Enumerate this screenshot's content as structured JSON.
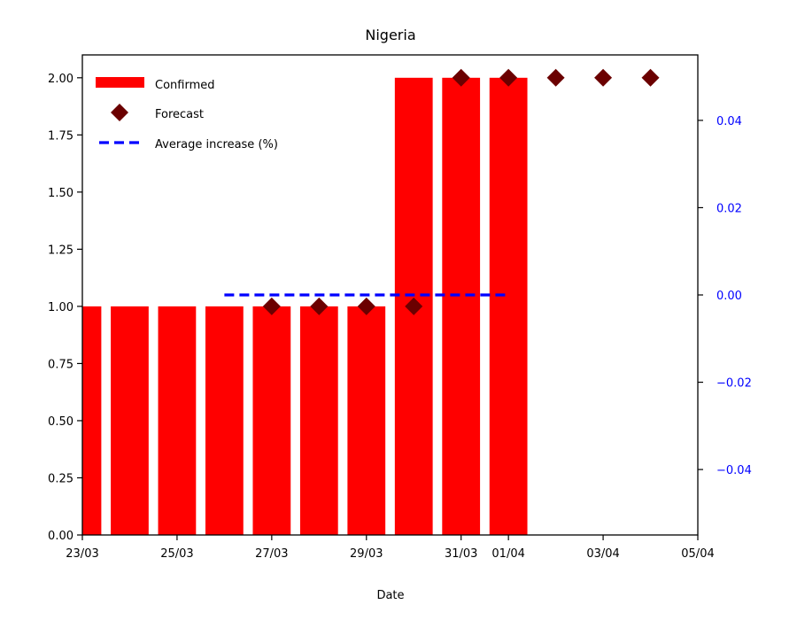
{
  "chart_data": {
    "type": "bar",
    "title": "Nigeria",
    "xlabel": "Date",
    "ylabel": "",
    "x_ticks": [
      "23/03",
      "25/03",
      "27/03",
      "29/03",
      "31/03",
      "01/04",
      "03/04",
      "05/04"
    ],
    "ylim": [
      0,
      2.1
    ],
    "y_ticks": [
      "0.00",
      "0.25",
      "0.50",
      "0.75",
      "1.00",
      "1.25",
      "1.50",
      "1.75",
      "2.00"
    ],
    "y2lim": [
      -0.055,
      0.055
    ],
    "y2_ticks": [
      "−0.04",
      "−0.02",
      "0.00",
      "0.02",
      "0.04"
    ],
    "series": [
      {
        "name": "Confirmed",
        "kind": "bar",
        "color": "#ff0000",
        "x": [
          "2020-03-23",
          "2020-03-24",
          "2020-03-25",
          "2020-03-26",
          "2020-03-27",
          "2020-03-28",
          "2020-03-29",
          "2020-03-30",
          "2020-03-31",
          "2020-04-01"
        ],
        "values": [
          1,
          1,
          1,
          1,
          1,
          1,
          1,
          2,
          2,
          2
        ]
      },
      {
        "name": "Forecast",
        "kind": "scatter",
        "marker": "diamond",
        "color": "#6b0000",
        "x": [
          "2020-03-27",
          "2020-03-28",
          "2020-03-29",
          "2020-03-30",
          "2020-03-31",
          "2020-04-01",
          "2020-04-02",
          "2020-04-03",
          "2020-04-04"
        ],
        "values": [
          1,
          1,
          1,
          1,
          2,
          2,
          2,
          2,
          2
        ]
      },
      {
        "name": "Average increase (%)",
        "kind": "line",
        "axis": "right",
        "style": "dashed",
        "color": "#0000ff",
        "x": [
          "2020-03-26",
          "2020-03-27",
          "2020-03-28",
          "2020-03-29",
          "2020-03-30",
          "2020-03-31",
          "2020-04-01"
        ],
        "values": [
          0,
          0,
          0,
          0,
          0,
          0,
          0
        ]
      }
    ],
    "legend_position": "upper-left",
    "grid": false
  }
}
